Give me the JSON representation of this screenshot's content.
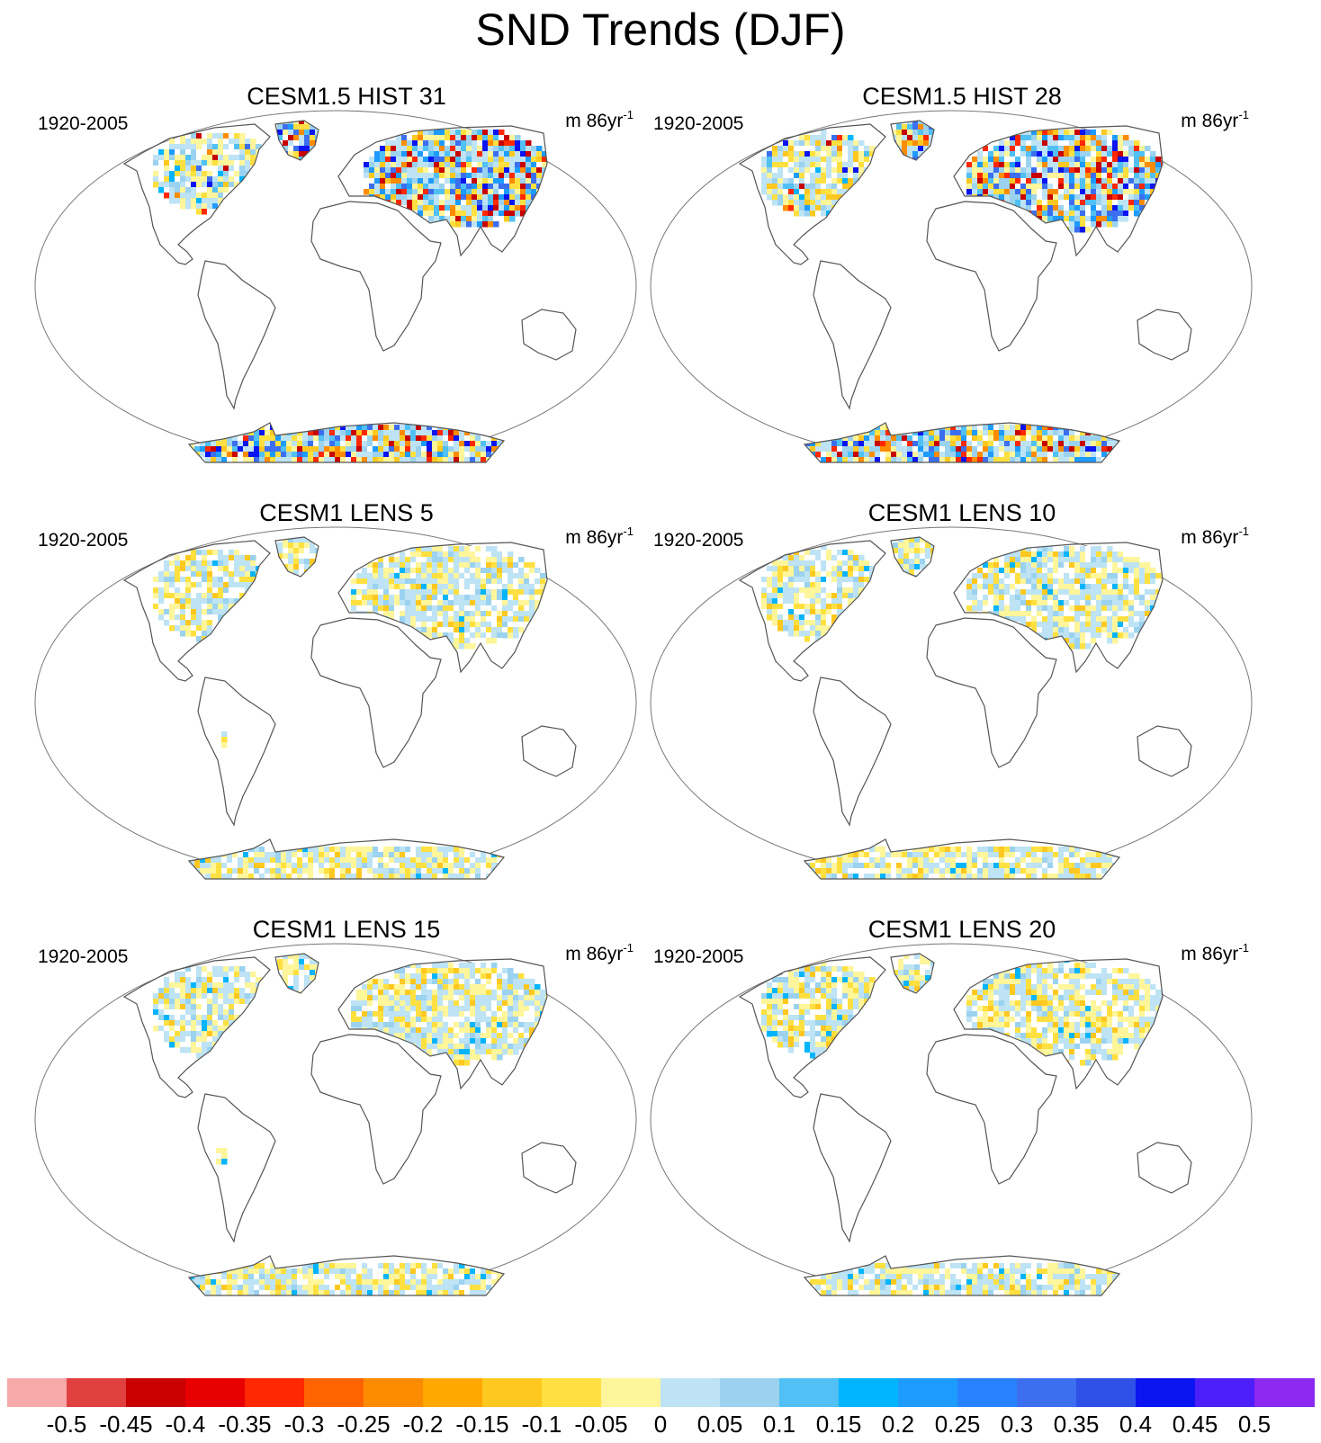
{
  "title": "SND Trends (DJF)",
  "panels": [
    {
      "title": "CESM1.5 HIST 31",
      "period": "1920-2005",
      "units": "m 86yr",
      "units_exp": "-1",
      "pattern": "strong"
    },
    {
      "title": "CESM1.5 HIST 28",
      "period": "1920-2005",
      "units": "m 86yr",
      "units_exp": "-1",
      "pattern": "strong2"
    },
    {
      "title": "CESM1 LENS 5",
      "period": "1920-2005",
      "units": "m 86yr",
      "units_exp": "-1",
      "pattern": "weak"
    },
    {
      "title": "CESM1 LENS 10",
      "period": "1920-2005",
      "units": "m 86yr",
      "units_exp": "-1",
      "pattern": "weak2"
    },
    {
      "title": "CESM1 LENS 15",
      "period": "1920-2005",
      "units": "m 86yr",
      "units_exp": "-1",
      "pattern": "weak"
    },
    {
      "title": "CESM1 LENS 20",
      "period": "1920-2005",
      "units": "m 86yr",
      "units_exp": "-1",
      "pattern": "weak2"
    }
  ],
  "colorbar": {
    "labels": [
      "-0.5",
      "-0.45",
      "-0.4",
      "-0.35",
      "-0.3",
      "-0.25",
      "-0.2",
      "-0.15",
      "-0.1",
      "-0.05",
      "0",
      "0.05",
      "0.1",
      "0.15",
      "0.2",
      "0.25",
      "0.3",
      "0.35",
      "0.4",
      "0.45",
      "0.5"
    ],
    "colors": [
      "#f7a8a8",
      "#e04040",
      "#c80000",
      "#e80000",
      "#ff2800",
      "#ff6400",
      "#ff8c00",
      "#ffa800",
      "#ffc820",
      "#ffe040",
      "#fff59a",
      "#bde3f5",
      "#9bd2ef",
      "#50c0f5",
      "#00b4ff",
      "#1e9bff",
      "#2882ff",
      "#3c6ef0",
      "#2d50e6",
      "#0a14f0",
      "#4b1efa",
      "#8c28f0"
    ]
  }
}
